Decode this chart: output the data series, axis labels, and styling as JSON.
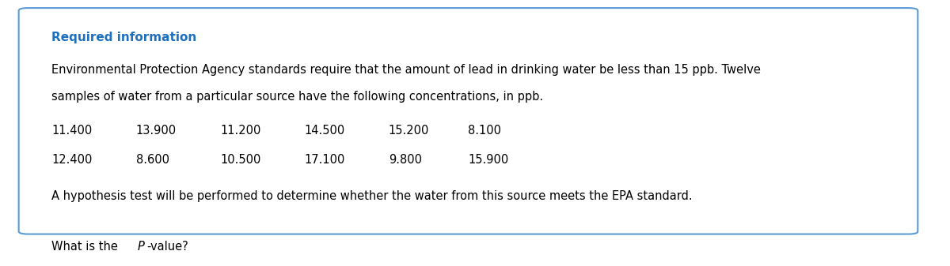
{
  "bg_color": "#ffffff",
  "box_border_color": "#5b9bd5",
  "box_bg_color": "#ffffff",
  "required_info_color": "#1f6fbf",
  "required_info_text": "Required information",
  "required_info_fontsize": 11,
  "body_text_color": "#000000",
  "body_fontsize": 10.5,
  "data_fontsize": 10.5,
  "question_fontsize": 10.5,
  "paragraph1": "Environmental Protection Agency standards require that the amount of lead in drinking water be less than 15 ppb. Twelve",
  "paragraph2": "samples of water from a particular source have the following concentrations, in ppb.",
  "data_row1": [
    "11.400",
    "13.900",
    "11.200",
    "14.500",
    "15.200",
    "8.100"
  ],
  "data_row2": [
    "12.400",
    "8.600",
    "10.500",
    "17.100",
    "9.800",
    "15.900"
  ],
  "hypothesis_text": "A hypothesis test will be performed to determine whether the water from this source meets the EPA standard.",
  "question_text": "What is the Ρ-value?",
  "question_text2": "What is the P-value?"
}
